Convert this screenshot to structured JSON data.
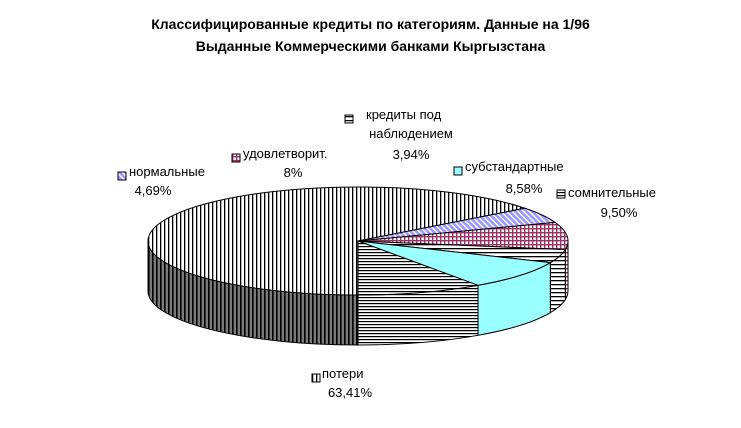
{
  "chart_data": {
    "type": "pie",
    "title": "Классифицированные кредиты по категориям. Данные на 1/96",
    "subtitle": "Выданные Коммерческими банками Кыргызстана",
    "legend": "inline labels",
    "slices": [
      {
        "label": "потери",
        "value": 63.41,
        "value_label": "63,41%",
        "pattern": "vertical",
        "color": "#000000"
      },
      {
        "label": "нормальные",
        "value": 4.69,
        "value_label": "4,69%",
        "pattern": "diagonal",
        "color": "#9999ff"
      },
      {
        "label": "удовлетворит.",
        "value": 8,
        "value_label": "8%",
        "pattern": "grid",
        "color": "#993366"
      },
      {
        "label": "кредиты под наблюдением",
        "value": 3.94,
        "value_label": "3,94%",
        "pattern": "horizontal",
        "color": "#000000"
      },
      {
        "label": "субстандартные",
        "value": 8.58,
        "value_label": "8,58%",
        "pattern": "solid",
        "color": "#99ffff"
      },
      {
        "label": "сомнительные",
        "value": 9.5,
        "value_label": "9,50%",
        "pattern": "horizontal-dense",
        "color": "#000000"
      }
    ]
  }
}
